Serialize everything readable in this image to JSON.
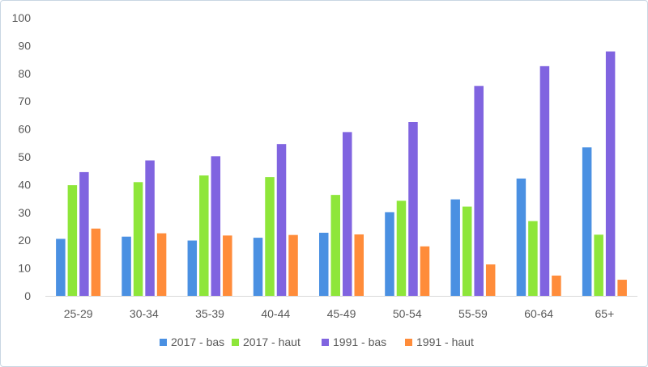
{
  "chart_data": {
    "type": "bar",
    "title": "",
    "xlabel": "",
    "ylabel": "",
    "ylim": [
      0,
      100
    ],
    "yticks": [
      0,
      10,
      20,
      30,
      40,
      50,
      60,
      70,
      80,
      90,
      100
    ],
    "grid": false,
    "legend_position": "bottom",
    "categories": [
      "25-29",
      "30-34",
      "35-39",
      "40-44",
      "45-49",
      "50-54",
      "55-59",
      "60-64",
      "65+"
    ],
    "series": [
      {
        "name": "2017 - bas",
        "color": "#4a90e2",
        "values": [
          20.5,
          21.3,
          19.9,
          20.9,
          22.7,
          30.1,
          34.7,
          42.2,
          53.4
        ]
      },
      {
        "name": "2017 - haut",
        "color": "#8ee63a",
        "values": [
          39.8,
          40.9,
          43.3,
          42.7,
          36.3,
          34.2,
          32.1,
          26.9,
          22.0
        ]
      },
      {
        "name": "1991 - bas",
        "color": "#8064e0",
        "values": [
          44.5,
          48.7,
          50.2,
          54.6,
          58.9,
          62.5,
          75.5,
          82.6,
          87.9
        ]
      },
      {
        "name": "1991 - haut",
        "color": "#ff8c3a",
        "values": [
          24.2,
          22.5,
          21.7,
          21.9,
          22.1,
          17.8,
          11.3,
          7.3,
          5.8
        ]
      }
    ]
  }
}
